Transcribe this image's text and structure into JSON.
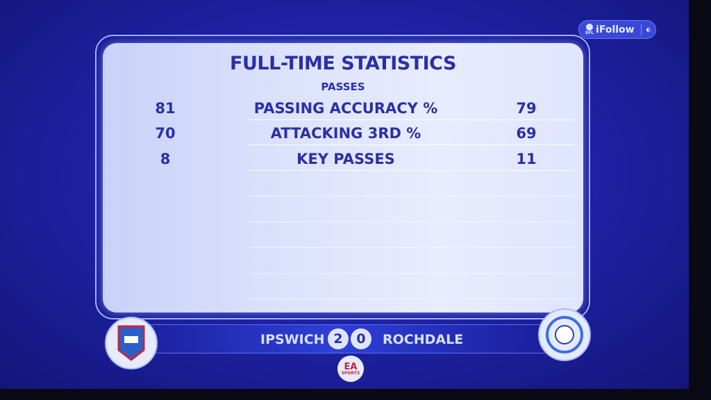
{
  "overlay": {
    "brand": "iFollow",
    "league": "EFL"
  },
  "stats": {
    "title": "FULL-TIME STATISTICS",
    "section": "PASSES",
    "rows": [
      {
        "label": "PASSING ACCURACY %",
        "home": "81",
        "away": "79"
      },
      {
        "label": "ATTACKING 3RD %",
        "home": "70",
        "away": "69"
      },
      {
        "label": "KEY PASSES",
        "home": "8",
        "away": "11"
      }
    ]
  },
  "scoreboard": {
    "home_team": "IPSWICH",
    "home_score": "2",
    "away_score": "0",
    "away_team": "ROCHDALE"
  },
  "footer": {
    "logo": "EA",
    "logo_sub": "SPORTS"
  },
  "colors": {
    "background": "#1d20a0",
    "panel": "#dde3fc",
    "text": "#2b2fa6"
  }
}
